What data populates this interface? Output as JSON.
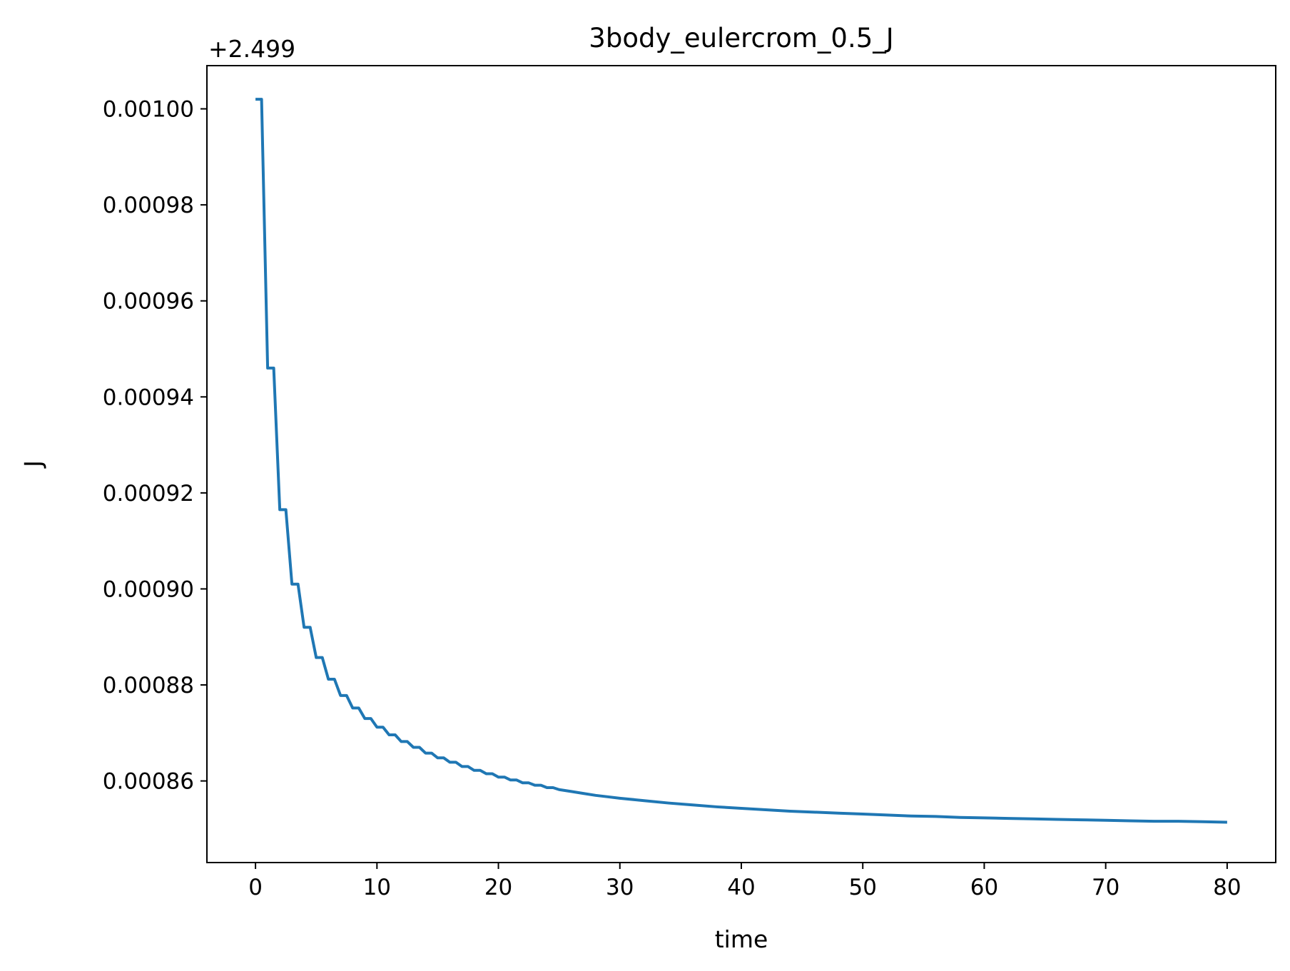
{
  "chart_data": {
    "type": "line",
    "title": "3body_eulercrom_0.5_J",
    "xlabel": "time",
    "ylabel": "J",
    "y_offset_label": "+2.499",
    "y_offset": 2.499,
    "xlim": [
      -4,
      84
    ],
    "ylim": [
      0.000843,
      0.001009
    ],
    "grid": false,
    "legend": "none",
    "x_ticks": [
      0,
      10,
      20,
      30,
      40,
      50,
      60,
      70,
      80
    ],
    "x_tick_labels": [
      "0",
      "10",
      "20",
      "30",
      "40",
      "50",
      "60",
      "70",
      "80"
    ],
    "y_ticks": [
      0.00086,
      0.00088,
      0.0009,
      0.00092,
      0.00094,
      0.00096,
      0.00098,
      0.001
    ],
    "y_tick_labels": [
      "0.00086",
      "0.00088",
      "0.00090",
      "0.00092",
      "0.00094",
      "0.00096",
      "0.00098",
      "0.00100"
    ],
    "series": [
      {
        "color": "#1f77b4",
        "x": [
          0.0,
          0.5,
          1.0,
          1.5,
          2.0,
          2.5,
          3.0,
          3.5,
          4.0,
          4.5,
          5.0,
          5.5,
          6.0,
          6.5,
          7.0,
          7.5,
          8.0,
          8.5,
          9.0,
          9.5,
          10.0,
          10.5,
          11.0,
          11.5,
          12.0,
          12.5,
          13.0,
          13.5,
          14.0,
          14.5,
          15.0,
          15.5,
          16.0,
          16.5,
          17.0,
          17.5,
          18.0,
          18.5,
          19.0,
          19.5,
          20.0,
          20.5,
          21.0,
          21.5,
          22.0,
          22.5,
          23.0,
          23.5,
          24.0,
          24.5,
          25,
          26,
          27,
          28,
          29,
          30,
          32,
          34,
          36,
          38,
          40,
          42,
          44,
          46,
          48,
          50,
          52,
          54,
          56,
          58,
          60,
          62,
          64,
          66,
          68,
          70,
          72,
          74,
          76,
          78,
          80
        ],
        "y": [
          0.001002,
          0.001002,
          0.000946,
          0.000946,
          0.0009165,
          0.0009165,
          0.000901,
          0.000901,
          0.000892,
          0.000892,
          0.0008857,
          0.0008857,
          0.0008812,
          0.0008812,
          0.0008778,
          0.0008778,
          0.0008752,
          0.0008752,
          0.000873,
          0.000873,
          0.0008712,
          0.0008712,
          0.0008696,
          0.0008696,
          0.0008682,
          0.0008682,
          0.000867,
          0.000867,
          0.0008658,
          0.0008658,
          0.0008648,
          0.0008648,
          0.0008639,
          0.0008639,
          0.000863,
          0.000863,
          0.0008622,
          0.0008622,
          0.0008615,
          0.0008615,
          0.0008608,
          0.0008608,
          0.0008602,
          0.0008602,
          0.0008596,
          0.0008596,
          0.0008591,
          0.0008591,
          0.0008586,
          0.0008586,
          0.0008582,
          0.0008578,
          0.0008574,
          0.000857,
          0.0008567,
          0.0008564,
          0.0008559,
          0.0008554,
          0.000855,
          0.0008546,
          0.0008543,
          0.000854,
          0.0008537,
          0.0008535,
          0.0008533,
          0.0008531,
          0.0008529,
          0.0008527,
          0.0008526,
          0.0008524,
          0.0008523,
          0.0008522,
          0.0008521,
          0.000852,
          0.0008519,
          0.0008518,
          0.0008517,
          0.0008516,
          0.0008516,
          0.0008515,
          0.0008514
        ]
      }
    ]
  }
}
